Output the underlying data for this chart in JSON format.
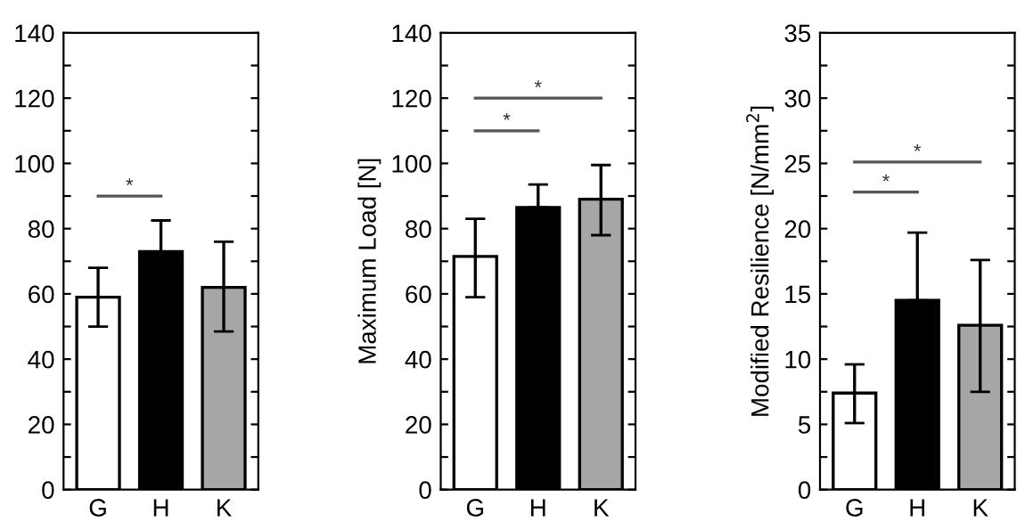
{
  "chart_data": [
    {
      "type": "bar",
      "categories": [
        "G",
        "H",
        "K"
      ],
      "colors": [
        "#ffffff",
        "#000000",
        "#a6a6a6"
      ],
      "values": [
        59,
        73,
        62
      ],
      "errors": [
        [
          50,
          68
        ],
        [
          73,
          82.5
        ],
        [
          48.5,
          76
        ]
      ],
      "ylim": [
        0,
        140
      ],
      "yticks": [
        0,
        {
          "value": 10,
          "label": null
        },
        20,
        {
          "value": 30,
          "label": null
        },
        40,
        {
          "value": 50,
          "label": null
        },
        60,
        {
          "value": 70,
          "label": null
        },
        80,
        {
          "value": 90,
          "label": null
        },
        100,
        {
          "value": 110,
          "label": null
        },
        120,
        {
          "value": 130,
          "label": null
        },
        140
      ],
      "series": [
        {
          "type": "line",
          "color": "#555555",
          "values": [
            90,
            90,
            null
          ]
        }
      ],
      "annotations": [
        {
          "text": "*",
          "y": 90
        }
      ]
    },
    {
      "type": "bar",
      "categories": [
        "G",
        "H",
        "K"
      ],
      "colors": [
        "#ffffff",
        "#000000",
        "#a6a6a6"
      ],
      "values": [
        71.5,
        86.5,
        89
      ],
      "errors": [
        [
          59,
          83
        ],
        [
          86.5,
          93.5
        ],
        [
          78,
          99.5
        ]
      ],
      "ylabel": "Maximum Load [N]",
      "ylim": [
        0,
        140
      ],
      "yticks": [
        0,
        {
          "value": 10,
          "label": null
        },
        20,
        {
          "value": 30,
          "label": null
        },
        40,
        {
          "value": 50,
          "label": null
        },
        60,
        {
          "value": 70,
          "label": null
        },
        80,
        {
          "value": 90,
          "label": null
        },
        100,
        {
          "value": 110,
          "label": null
        },
        120,
        {
          "value": 130,
          "label": null
        },
        140
      ],
      "series": [
        {
          "type": "line",
          "color": "#555555",
          "values": [
            120,
            120,
            120
          ]
        },
        {
          "type": "line",
          "color": "#555555",
          "values": [
            110,
            110,
            null
          ]
        }
      ],
      "annotations": [
        {
          "text": "*",
          "y": 120
        },
        {
          "text": "*",
          "y": 110
        }
      ]
    },
    {
      "type": "bar",
      "categories": [
        "G",
        "H",
        "K"
      ],
      "colors": [
        "#ffffff",
        "#000000",
        "#a6a6a6"
      ],
      "values": [
        7.4,
        14.5,
        12.6
      ],
      "errors": [
        [
          5.1,
          9.6
        ],
        [
          14.5,
          19.7
        ],
        [
          7.5,
          17.6
        ]
      ],
      "ylabel": "Modified Resilience [N/mm$^{2}$]",
      "ylim": [
        0,
        35
      ],
      "yticks": [
        0,
        {
          "value": 2.5,
          "label": null
        },
        5,
        {
          "value": 7.5,
          "label": null
        },
        10,
        {
          "value": 12.5,
          "label": null
        },
        15,
        {
          "value": 17.5,
          "label": null
        },
        20,
        {
          "value": 22.5,
          "label": null
        },
        25,
        {
          "value": 27.5,
          "label": null
        },
        30,
        {
          "value": 32.5,
          "label": null
        },
        35
      ],
      "series": [
        {
          "type": "line",
          "color": "#555555",
          "values": [
            25.1,
            25.1,
            25.1
          ]
        },
        {
          "type": "line",
          "color": "#555555",
          "values": [
            22.8,
            22.8,
            null
          ]
        }
      ],
      "annotations": [
        {
          "text": "*",
          "y": 25.1
        },
        {
          "text": "*",
          "y": 22.8
        }
      ]
    }
  ]
}
